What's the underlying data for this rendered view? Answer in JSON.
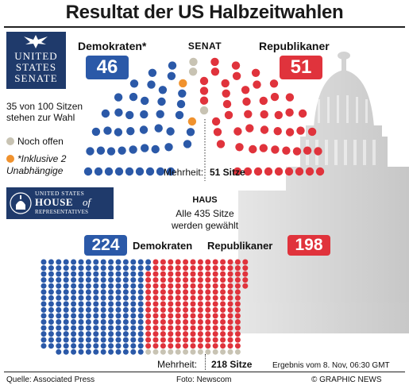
{
  "title": "Resultat der US Halbzeitwahlen",
  "colors": {
    "democrat": "#2b59a8",
    "republican": "#e0333c",
    "open": "#c8c3b3",
    "independent": "#f0922e",
    "seal_bg": "#1f3a6b"
  },
  "senate": {
    "seal_line1": "UNITED",
    "seal_line2": "STATES",
    "seal_line3": "SENATE",
    "heading": "SENAT",
    "dem_label": "Demokraten*",
    "rep_label": "Republikaner",
    "dem_seats": "46",
    "rep_seats": "51",
    "note_line1": "35 von 100 Sitzen",
    "note_line2": "stehen zur Wahl",
    "legend_open": "Noch offen",
    "legend_indep_line1": "*Inklusive 2",
    "legend_indep_line2": "Unabhängige",
    "majority_label": "Mehrheit:",
    "majority_value": "51 Sitze"
  },
  "house": {
    "seal_line1": "UNITED STATES",
    "seal_line2": "HOUSE",
    "seal_line3": "of",
    "seal_line4": "REPRESENTATIVES",
    "heading": "HAUS",
    "sub_line1": "Alle 435 Sitze",
    "sub_line2": "werden gewählt",
    "dem_label": "Demokraten",
    "rep_label": "Republikaner",
    "dem_seats": "224",
    "rep_seats": "198",
    "majority_label": "Mehrheit:",
    "majority_value": "218 Sitze"
  },
  "footer": {
    "source": "Quelle: Associated Press",
    "photo": "Foto: Newscom",
    "result": "Ergebnis vom 8. Nov, 06:30 GMT",
    "copyright": "© GRAPHIC NEWS"
  },
  "chart_data": [
    {
      "type": "parliament",
      "chamber": "Senat",
      "total": 100,
      "series": [
        {
          "name": "Demokraten*",
          "values": [
            44
          ]
        },
        {
          "name": "Unabhängige",
          "values": [
            2
          ]
        },
        {
          "name": "Noch offen",
          "values": [
            3
          ]
        },
        {
          "name": "Republikaner",
          "values": [
            51
          ]
        }
      ],
      "majority": 51
    },
    {
      "type": "dot-grid",
      "chamber": "Haus",
      "total": 435,
      "series": [
        {
          "name": "Demokraten",
          "values": [
            224
          ]
        },
        {
          "name": "Noch offen",
          "values": [
            13
          ]
        },
        {
          "name": "Republikaner",
          "values": [
            198
          ]
        }
      ],
      "majority": 218
    }
  ]
}
